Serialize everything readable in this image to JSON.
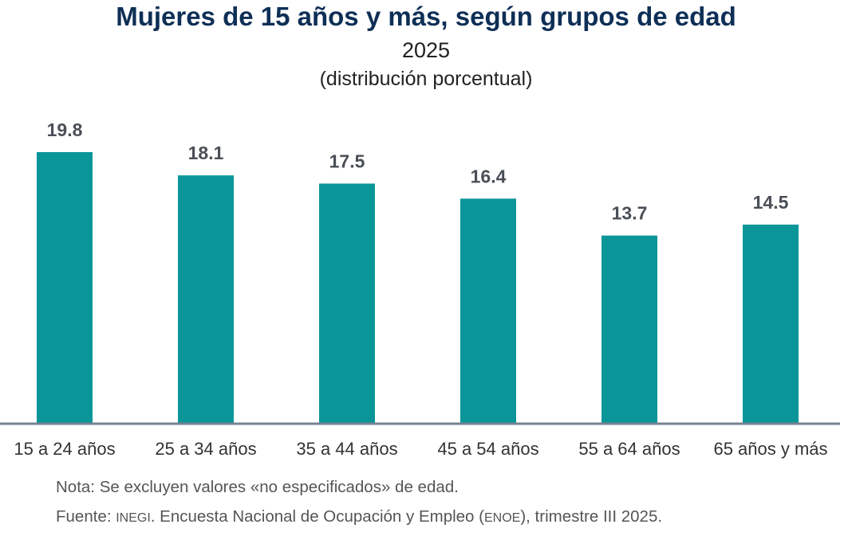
{
  "colors": {
    "bar": "#0a9698",
    "axis": "#768391",
    "title": "#0e2f56",
    "label": "#4a4f57"
  },
  "chart_data": {
    "type": "bar",
    "title": "Mujeres de 15 años y más, según grupos de edad",
    "subtitle": "2025",
    "subtitle2": "(distribución porcentual)",
    "categories": [
      "15 a 24 años",
      "25 a 34 años",
      "35 a 44 años",
      "45 a 54 años",
      "55 a 64 años",
      "65 años y más"
    ],
    "values": [
      19.8,
      18.1,
      17.5,
      16.4,
      13.7,
      14.5
    ],
    "value_labels": [
      "19.8",
      "18.1",
      "17.5",
      "16.4",
      "13.7",
      "14.5"
    ],
    "xlabel": "",
    "ylabel": "",
    "ylim": [
      0,
      19.8
    ],
    "grid": false
  },
  "notes": {
    "nota": "Nota: Se excluyen valores «no especificados» de edad.",
    "fuente_prefix": "Fuente: ",
    "fuente_inegi": "INEGI",
    "fuente_mid": ". Encuesta Nacional de Ocupación y Empleo (",
    "fuente_enoe": "ENOE",
    "fuente_suffix": "), trimestre III 2025."
  }
}
